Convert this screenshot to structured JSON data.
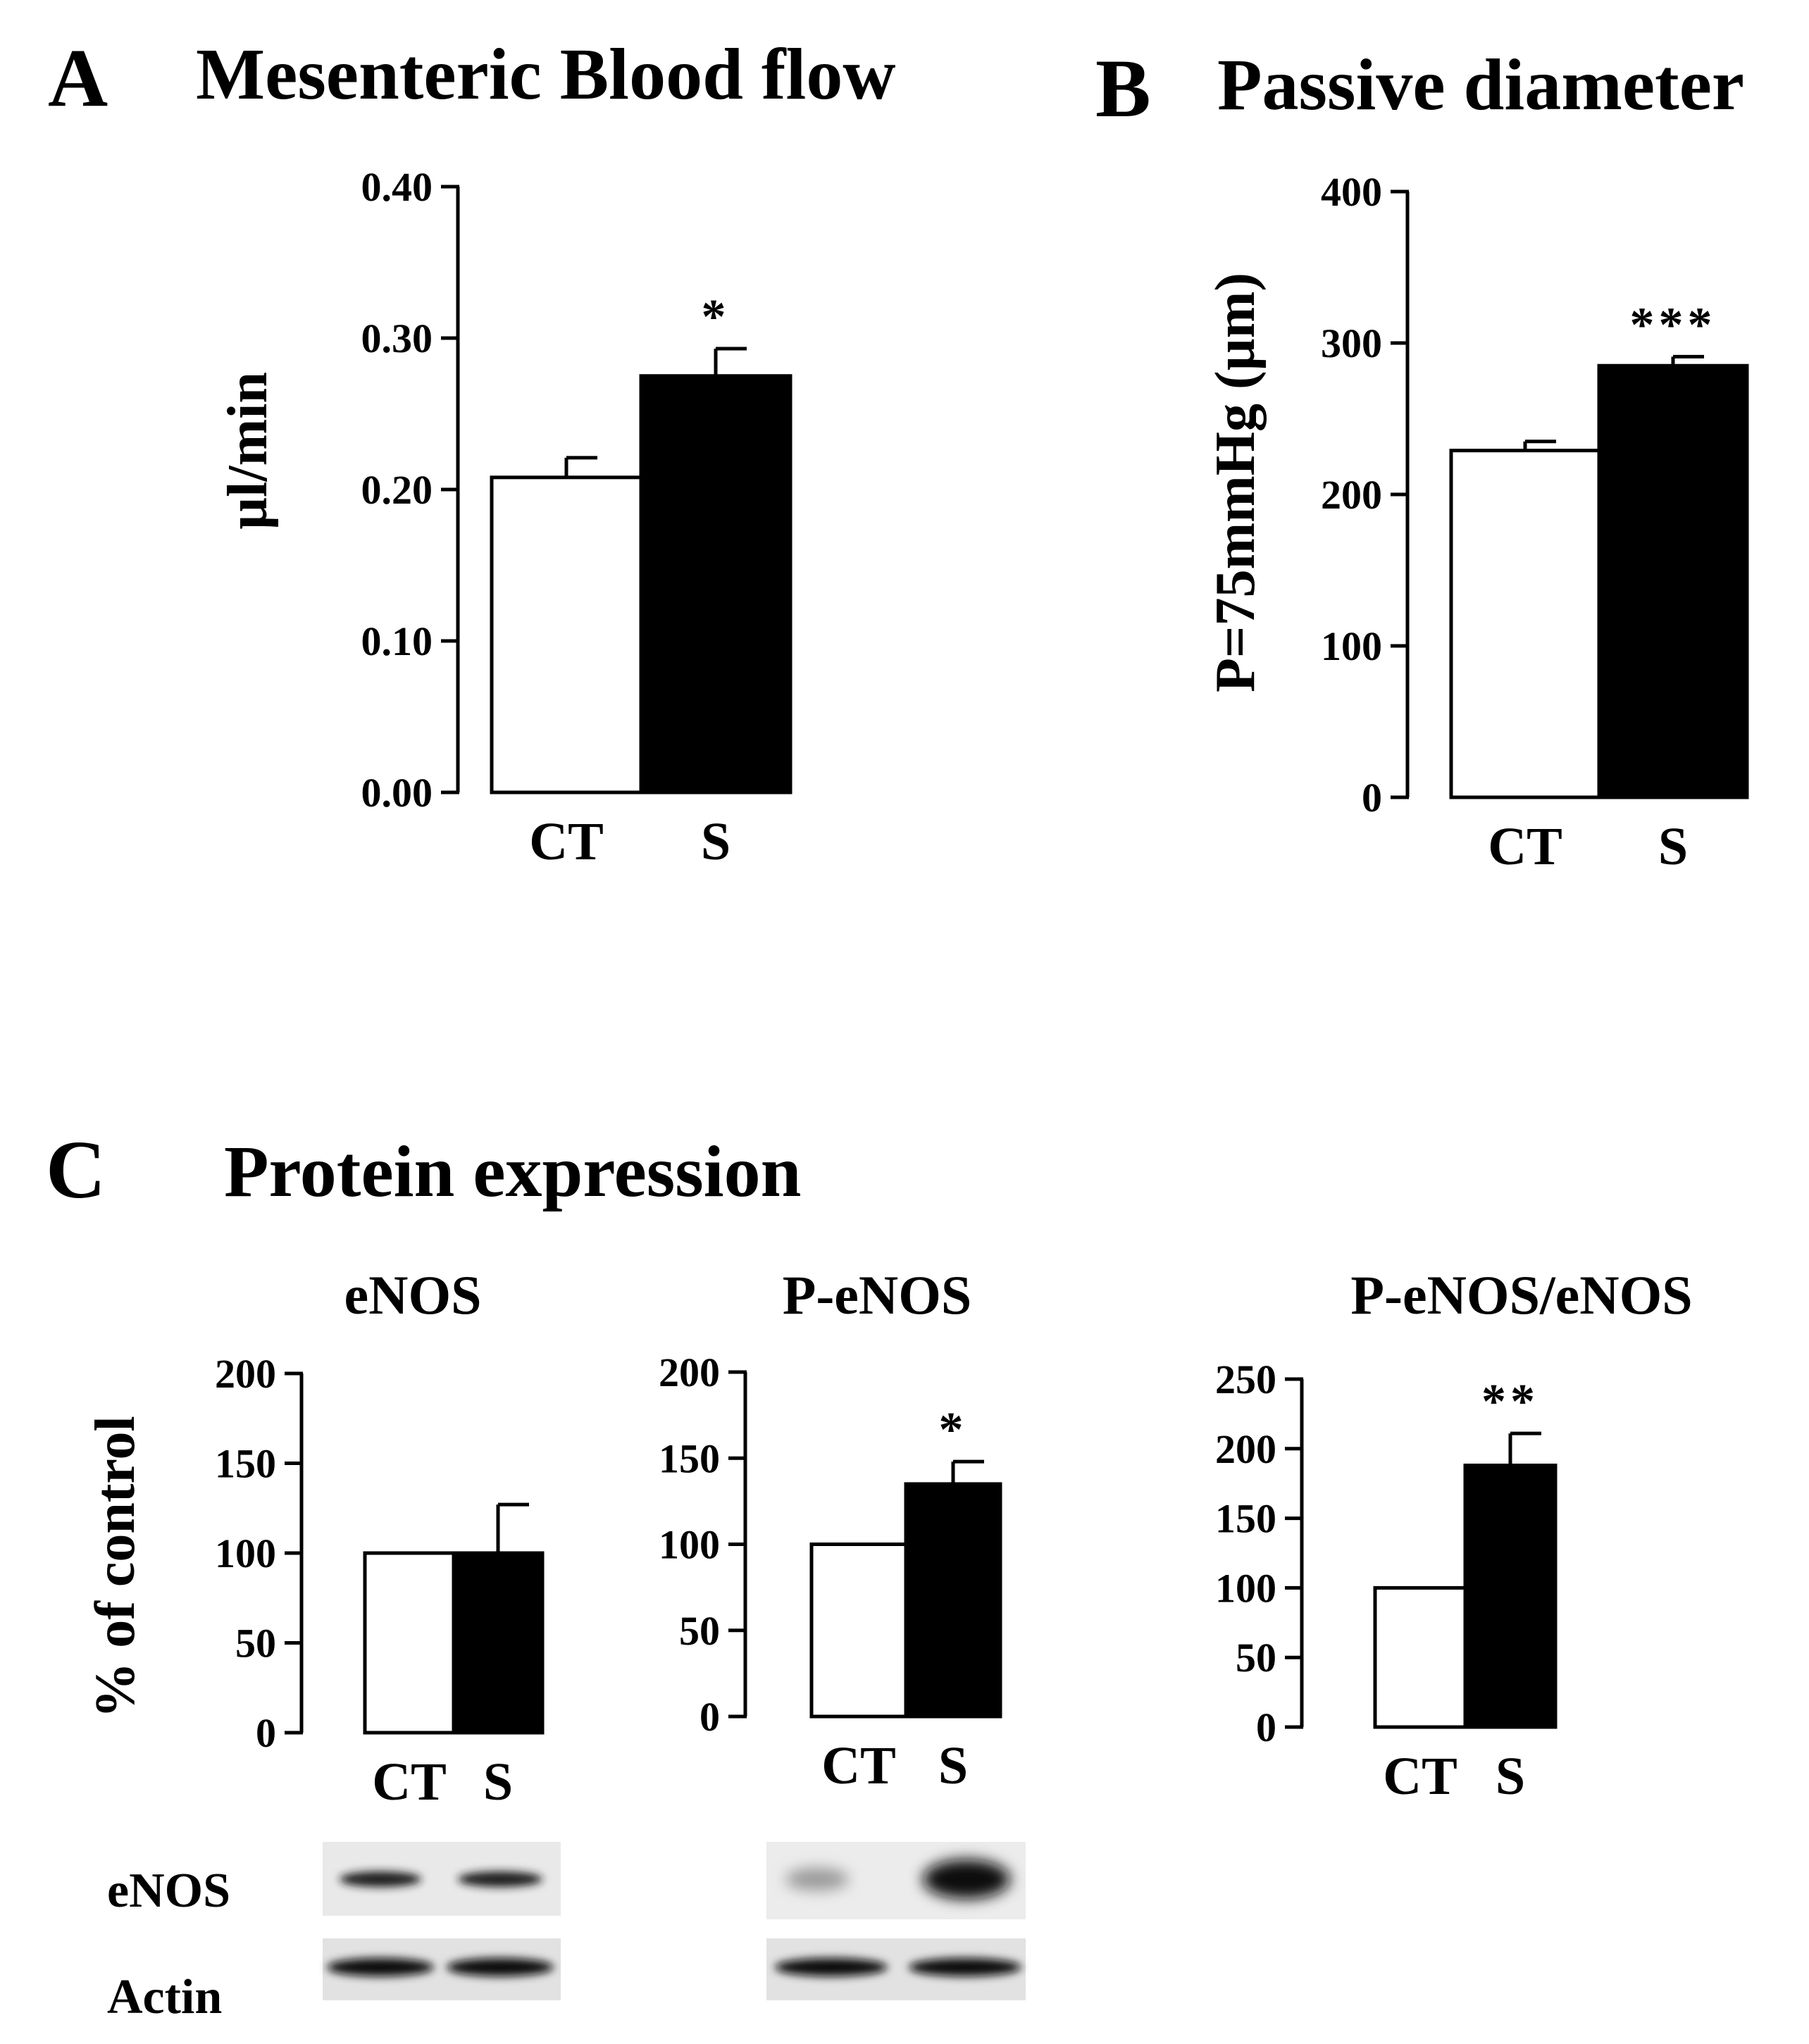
{
  "panels": {
    "A": {
      "letter": "A",
      "title": "Mesenteric Blood flow"
    },
    "B": {
      "letter": "B",
      "title": "Passive diameter"
    },
    "C": {
      "letter": "C",
      "title": "Protein expression",
      "shared_ylabel": "% of control"
    }
  },
  "blots": {
    "labels": {
      "top": "eNOS",
      "bottom": "Actin"
    }
  },
  "colors": {
    "ct_bar": "#ffffff",
    "s_bar": "#000000",
    "axis": "#000000"
  },
  "chart_data": [
    {
      "id": "A",
      "type": "bar",
      "title": "Mesenteric Blood flow",
      "ylabel": "µl/min",
      "categories": [
        "CT",
        "S"
      ],
      "values": [
        0.208,
        0.275
      ],
      "errors": [
        0.013,
        0.018
      ],
      "significance": [
        "",
        "*"
      ],
      "ylim": [
        0,
        0.4
      ],
      "ticks": [
        0,
        0.1,
        0.2,
        0.3,
        0.4
      ],
      "tick_labels": [
        "0.00",
        "0.10",
        "0.20",
        "0.30",
        "0.40"
      ]
    },
    {
      "id": "B",
      "type": "bar",
      "title": "Passive diameter",
      "ylabel": "P=75mmHg (µm)",
      "categories": [
        "CT",
        "S"
      ],
      "values": [
        229,
        285
      ],
      "errors": [
        6,
        6
      ],
      "significance": [
        "",
        "***"
      ],
      "ylim": [
        0,
        400
      ],
      "ticks": [
        0,
        100,
        200,
        300,
        400
      ],
      "tick_labels": [
        "0",
        "100",
        "200",
        "300",
        "400"
      ]
    },
    {
      "id": "C1",
      "type": "bar",
      "title": "eNOS",
      "ylabel": "% of control",
      "categories": [
        "CT",
        "S"
      ],
      "values": [
        100,
        100
      ],
      "errors": [
        0,
        27
      ],
      "significance": [
        "",
        ""
      ],
      "ylim": [
        0,
        200
      ],
      "ticks": [
        0,
        50,
        100,
        150,
        200
      ],
      "tick_labels": [
        "0",
        "50",
        "100",
        "150",
        "200"
      ]
    },
    {
      "id": "C2",
      "type": "bar",
      "title": "P-eNOS",
      "ylabel": "% of control",
      "categories": [
        "CT",
        "S"
      ],
      "values": [
        100,
        135
      ],
      "errors": [
        0,
        13
      ],
      "significance": [
        "",
        "*"
      ],
      "ylim": [
        0,
        200
      ],
      "ticks": [
        0,
        50,
        100,
        150,
        200
      ],
      "tick_labels": [
        "0",
        "50",
        "100",
        "150",
        "200"
      ]
    },
    {
      "id": "C3",
      "type": "bar",
      "title": "P-eNOS/eNOS",
      "ylabel": "% of control",
      "categories": [
        "CT",
        "S"
      ],
      "values": [
        100,
        188
      ],
      "errors": [
        0,
        23
      ],
      "significance": [
        "",
        "**"
      ],
      "ylim": [
        0,
        250
      ],
      "ticks": [
        0,
        50,
        100,
        150,
        200,
        250
      ],
      "tick_labels": [
        "0",
        "50",
        "100",
        "150",
        "200",
        "250"
      ]
    }
  ]
}
